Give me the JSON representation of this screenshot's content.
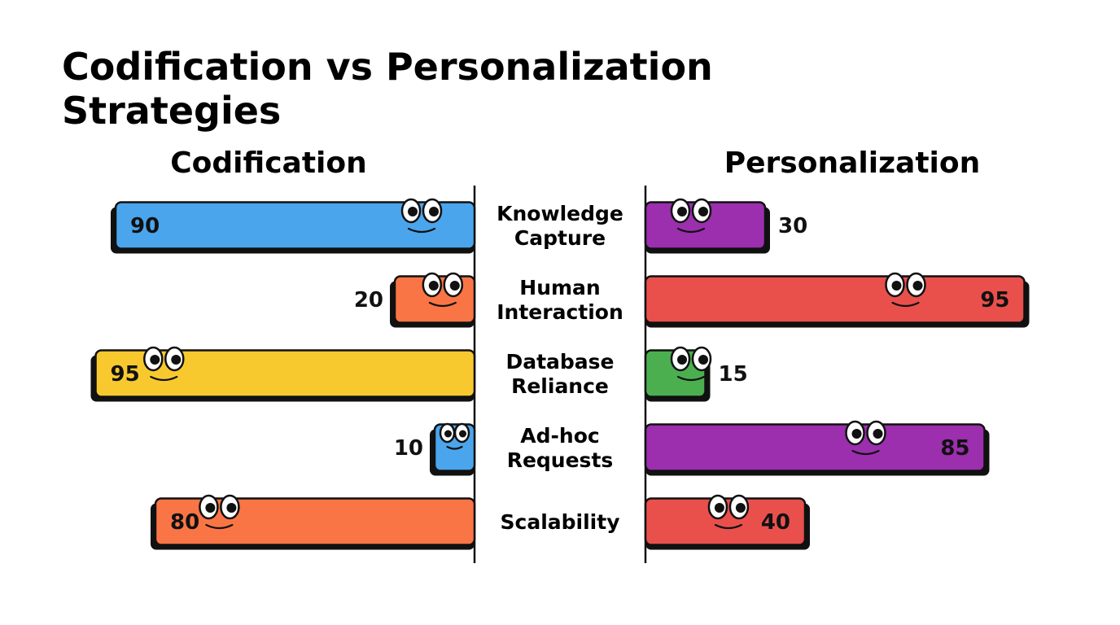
{
  "chart_data": {
    "type": "bar",
    "title": [
      "Codification vs Personalization",
      "Strategies"
    ],
    "left_heading": "Codification",
    "right_heading": "Personalization",
    "xlim": [
      0,
      100
    ],
    "categories": [
      [
        "Knowledge",
        "Capture"
      ],
      [
        "Human",
        "Interaction"
      ],
      [
        "Database",
        "Reliance"
      ],
      [
        "Ad-hoc",
        "Requests"
      ],
      [
        "Scalability"
      ]
    ],
    "series": [
      {
        "name": "Codification",
        "values": [
          90,
          20,
          95,
          10,
          80
        ],
        "colors": [
          "#4aa5ec",
          "#fa7545",
          "#f8c92f",
          "#4aa5ec",
          "#fa7545"
        ]
      },
      {
        "name": "Personalization",
        "values": [
          30,
          95,
          15,
          85,
          40
        ],
        "colors": [
          "#9b2fae",
          "#e9504c",
          "#4baf50",
          "#9b2fae",
          "#e9504c"
        ]
      }
    ]
  }
}
